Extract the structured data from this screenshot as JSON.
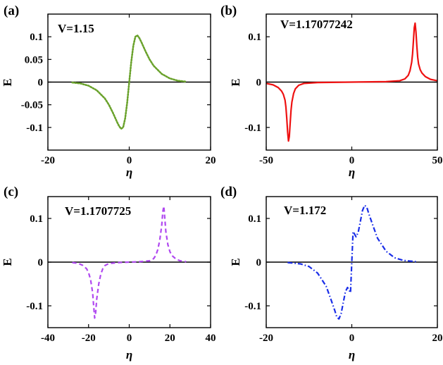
{
  "chart_data": [
    {
      "type": "line",
      "panel": "(a)",
      "annotation": "V=1.15",
      "xlabel": "η",
      "ylabel": "E",
      "xlim": [
        -20,
        20
      ],
      "ylim": [
        -0.15,
        0.15
      ],
      "xticks": [
        "-20",
        "0",
        "20"
      ],
      "yticks": [
        "0.1",
        "0.05",
        "0",
        "-0.05",
        "-0.1"
      ],
      "ytick_values": [
        0.1,
        0.05,
        0,
        -0.05,
        -0.1
      ],
      "xtick_values": [
        -20,
        0,
        20
      ],
      "line_style": "dotted",
      "color": "#6aa22c",
      "series": [
        {
          "x": [
            -14,
            -12,
            -10,
            -8,
            -6,
            -5,
            -4,
            -3,
            -2.5,
            -2,
            -1.5,
            -1,
            -0.5,
            0,
            0.5,
            1,
            1.5,
            2,
            2.5,
            3,
            4,
            5,
            6,
            8,
            10,
            12,
            14
          ],
          "y": [
            -0.001,
            -0.003,
            -0.008,
            -0.018,
            -0.036,
            -0.05,
            -0.068,
            -0.088,
            -0.097,
            -0.103,
            -0.1,
            -0.08,
            -0.045,
            0,
            0.045,
            0.08,
            0.1,
            0.103,
            0.097,
            0.088,
            0.068,
            0.05,
            0.036,
            0.018,
            0.008,
            0.003,
            0.001
          ]
        }
      ]
    },
    {
      "type": "line",
      "panel": "(b)",
      "annotation": "V=1.17077242",
      "xlabel": "η",
      "ylabel": "E",
      "xlim": [
        -50,
        50
      ],
      "ylim": [
        -0.15,
        0.15
      ],
      "xticks": [
        "-50",
        "0",
        "50"
      ],
      "yticks": [
        "0.1",
        "0",
        "-0.1"
      ],
      "ytick_values": [
        0.1,
        0,
        -0.1
      ],
      "xtick_values": [
        -50,
        0,
        50
      ],
      "line_style": "solid",
      "color": "#ee1111",
      "series": [
        {
          "x": [
            -50,
            -46,
            -43,
            -41,
            -40,
            -39,
            -38.5,
            -38,
            -37.5,
            -37,
            -36.5,
            -36,
            -35.5,
            -35,
            -34,
            -33,
            -31,
            -28,
            -20,
            0,
            20,
            28,
            31,
            33,
            34,
            35,
            35.5,
            36,
            36.5,
            37,
            37.5,
            38,
            38.5,
            39,
            40,
            41,
            43,
            46,
            50
          ],
          "y": [
            -0.003,
            -0.006,
            -0.012,
            -0.02,
            -0.027,
            -0.04,
            -0.055,
            -0.08,
            -0.11,
            -0.13,
            -0.12,
            -0.09,
            -0.062,
            -0.044,
            -0.025,
            -0.015,
            -0.007,
            -0.003,
            -0.001,
            0,
            0.001,
            0.003,
            0.007,
            0.015,
            0.025,
            0.044,
            0.062,
            0.09,
            0.12,
            0.13,
            0.11,
            0.08,
            0.055,
            0.04,
            0.027,
            0.02,
            0.012,
            0.006,
            0.003
          ]
        }
      ]
    },
    {
      "type": "line",
      "panel": "(c)",
      "annotation": "V=1.1707725",
      "xlabel": "η",
      "ylabel": "E",
      "xlim": [
        -40,
        40
      ],
      "ylim": [
        -0.15,
        0.15
      ],
      "xticks": [
        "-40",
        "-20",
        "0",
        "20",
        "40"
      ],
      "yticks": [
        "0.1",
        "0",
        "-0.1"
      ],
      "ytick_values": [
        0.1,
        0,
        -0.1
      ],
      "xtick_values": [
        -40,
        -20,
        0,
        20,
        40
      ],
      "line_style": "dashed",
      "color": "#b048f0",
      "series": [
        {
          "x": [
            -28,
            -25,
            -23,
            -21,
            -20,
            -19,
            -18,
            -17.5,
            -17,
            -16.5,
            -16,
            -15,
            -14,
            -13,
            -12,
            -10,
            -5,
            0,
            5,
            10,
            12,
            13,
            14,
            15,
            16,
            16.5,
            17,
            17.5,
            18,
            19,
            20,
            21,
            23,
            25,
            28
          ],
          "y": [
            -0.001,
            -0.003,
            -0.007,
            -0.015,
            -0.024,
            -0.04,
            -0.07,
            -0.1,
            -0.128,
            -0.115,
            -0.085,
            -0.05,
            -0.028,
            -0.015,
            -0.008,
            -0.003,
            -0.001,
            0,
            0.001,
            0.003,
            0.008,
            0.015,
            0.028,
            0.05,
            0.085,
            0.115,
            0.128,
            0.1,
            0.07,
            0.04,
            0.024,
            0.015,
            0.007,
            0.003,
            0.001
          ]
        }
      ]
    },
    {
      "type": "line",
      "panel": "(d)",
      "annotation": "V=1.172",
      "xlabel": "η",
      "ylabel": "E",
      "xlim": [
        -20,
        20
      ],
      "ylim": [
        -0.15,
        0.15
      ],
      "xticks": [
        "-20",
        "0",
        "20"
      ],
      "yticks": [
        "0.1",
        "0",
        "-0.1"
      ],
      "ytick_values": [
        0.1,
        0,
        -0.1
      ],
      "xtick_values": [
        -20,
        0,
        20
      ],
      "line_style": "dashdot",
      "color": "#1a2ee8",
      "series": [
        {
          "x": [
            -15,
            -12,
            -10,
            -8,
            -6,
            -5,
            -4,
            -3.5,
            -3,
            -2.5,
            -2,
            -1.5,
            -1,
            -0.6,
            -0.3,
            0,
            0.3,
            0.6,
            1,
            1.5,
            2,
            2.5,
            3,
            3.5,
            4,
            5,
            6,
            8,
            10,
            12,
            15
          ],
          "y": [
            -0.001,
            -0.004,
            -0.01,
            -0.025,
            -0.055,
            -0.082,
            -0.11,
            -0.126,
            -0.13,
            -0.118,
            -0.093,
            -0.068,
            -0.058,
            -0.065,
            -0.07,
            0,
            0.07,
            0.065,
            0.058,
            0.068,
            0.093,
            0.118,
            0.13,
            0.126,
            0.11,
            0.082,
            0.055,
            0.025,
            0.01,
            0.004,
            0.001
          ]
        }
      ]
    }
  ]
}
